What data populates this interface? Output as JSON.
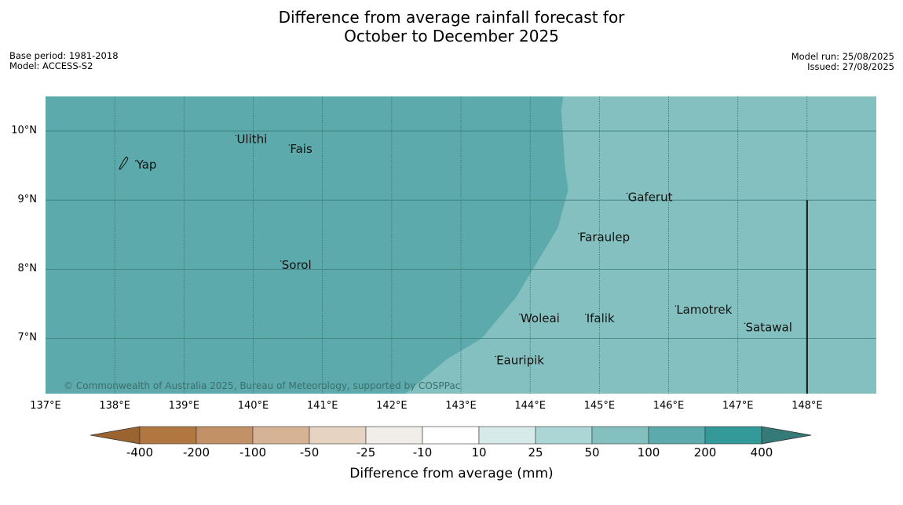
{
  "title_line1": "Difference from average rainfall forecast for",
  "title_line2": "October to December 2025",
  "meta_left": [
    "Base period: 1981-2018",
    "Model: ACCESS-S2"
  ],
  "meta_right": [
    "Model run: 25/08/2025",
    "Issued: 27/08/2025"
  ],
  "copyright": "© Commonwealth of Australia 2025, Bureau of Meteorology, supported by COSPPac",
  "map": {
    "lon_range": [
      137,
      149
    ],
    "lat_range": [
      6.2,
      10.5
    ],
    "lon_ticks": [
      {
        "value": 137,
        "label": "137°E"
      },
      {
        "value": 138,
        "label": "138°E"
      },
      {
        "value": 139,
        "label": "139°E"
      },
      {
        "value": 140,
        "label": "140°E"
      },
      {
        "value": 141,
        "label": "141°E"
      },
      {
        "value": 142,
        "label": "142°E"
      },
      {
        "value": 143,
        "label": "143°E"
      },
      {
        "value": 144,
        "label": "144°E"
      },
      {
        "value": 145,
        "label": "145°E"
      },
      {
        "value": 146,
        "label": "146°E"
      },
      {
        "value": 147,
        "label": "147°E"
      },
      {
        "value": 148,
        "label": "148°E"
      }
    ],
    "lat_ticks": [
      {
        "value": 10,
        "label": "10°N"
      },
      {
        "value": 9,
        "label": "9°N"
      },
      {
        "value": 8,
        "label": "8°N"
      },
      {
        "value": 7,
        "label": "7°N"
      }
    ],
    "regions": [
      {
        "category": "100 to 200",
        "color": "#5caaab"
      },
      {
        "category": "50 to 100",
        "color": "#84c0bf"
      }
    ],
    "boundary_points": [
      [
        144.48,
        10.5
      ],
      [
        144.45,
        10.3
      ],
      [
        144.47,
        10.0
      ],
      [
        144.5,
        9.5
      ],
      [
        144.55,
        9.15
      ],
      [
        144.4,
        8.6
      ],
      [
        144.1,
        8.1
      ],
      [
        143.8,
        7.6
      ],
      [
        143.3,
        7.0
      ],
      [
        142.8,
        6.7
      ],
      [
        142.2,
        6.2
      ]
    ],
    "boundary_line": {
      "lon": 148,
      "lat_from": 6.2,
      "lat_to": 9.0
    },
    "places": [
      {
        "name": "Yap",
        "lon": 138.3,
        "lat": 9.5
      },
      {
        "name": "Ulithi",
        "lon": 139.75,
        "lat": 9.87
      },
      {
        "name": "Fais",
        "lon": 140.52,
        "lat": 9.73
      },
      {
        "name": "Gaferut",
        "lon": 145.4,
        "lat": 9.03
      },
      {
        "name": "Faraulep",
        "lon": 144.7,
        "lat": 8.45
      },
      {
        "name": "Sorol",
        "lon": 140.4,
        "lat": 8.05
      },
      {
        "name": "Lamotrek",
        "lon": 146.1,
        "lat": 7.4
      },
      {
        "name": "Woleai",
        "lon": 143.85,
        "lat": 7.28
      },
      {
        "name": "Ifalik",
        "lon": 144.8,
        "lat": 7.28
      },
      {
        "name": "Satawal",
        "lon": 147.1,
        "lat": 7.15
      },
      {
        "name": "Eauripik",
        "lon": 143.5,
        "lat": 6.67
      }
    ]
  },
  "legend": {
    "title": "Difference from average (mm)",
    "labels": [
      "-400",
      "-200",
      "-100",
      "-50",
      "-25",
      "-10",
      "10",
      "25",
      "50",
      "100",
      "200",
      "400"
    ],
    "colors": [
      "#9b6330",
      "#b07840",
      "#c29168",
      "#d6b394",
      "#e6d3c2",
      "#f1eeea",
      "#ffffff",
      "#d6eae9",
      "#acd6d5",
      "#84c0bf",
      "#5caaab",
      "#339a99",
      "#337a79"
    ]
  }
}
